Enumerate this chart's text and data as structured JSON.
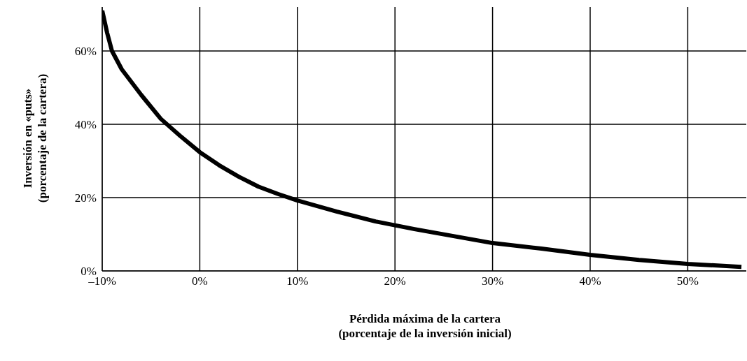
{
  "chart_data": {
    "type": "line",
    "xlabel": "Pérdida máxima de la cartera\n(porcentaje de la inversión inicial)",
    "ylabel": "Inversión en «puts»\n(porcentaje de la cartera)",
    "x": [
      -10,
      -9.5,
      -9,
      -8,
      -6,
      -4,
      -2,
      0,
      2,
      4,
      6,
      8,
      10,
      14,
      18,
      22,
      26,
      30,
      35,
      40,
      45,
      50,
      55.5
    ],
    "series": [
      {
        "color": "#000000",
        "values": [
          71,
          65,
          60,
          55,
          48,
          41.5,
          36.8,
          32.4,
          28.8,
          25.7,
          23,
          21,
          19.2,
          16.2,
          13.5,
          11.4,
          9.5,
          7.6,
          6.1,
          4.4,
          3,
          1.9,
          1.1
        ]
      }
    ],
    "xlim": [
      -10,
      56
    ],
    "xticks": [
      {
        "value": -10,
        "label": "–10%"
      },
      {
        "value": 0,
        "label": "0%"
      },
      {
        "value": 10,
        "label": "10%"
      },
      {
        "value": 20,
        "label": "20%"
      },
      {
        "value": 30,
        "label": "30%"
      },
      {
        "value": 40,
        "label": "40%"
      },
      {
        "value": 50,
        "label": "50%"
      }
    ],
    "ylim": [
      0,
      72
    ],
    "yticks": [
      {
        "value": 0,
        "label": "0%"
      },
      {
        "value": 20,
        "label": "20%"
      },
      {
        "value": 40,
        "label": "40%"
      },
      {
        "value": 60,
        "label": "60%"
      }
    ],
    "grid": true,
    "marker": "none",
    "line_style": "solid"
  }
}
